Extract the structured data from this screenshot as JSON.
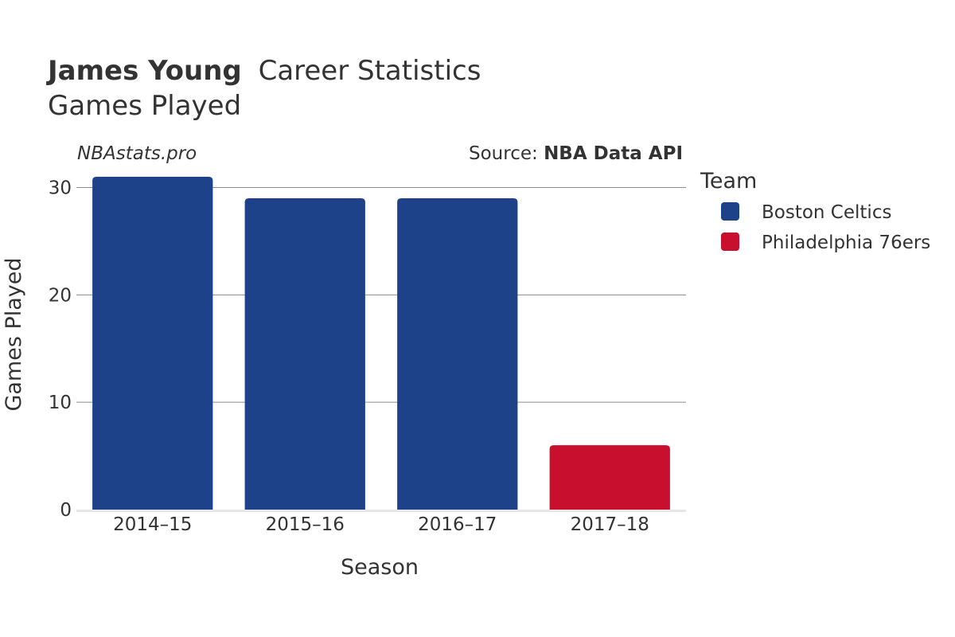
{
  "header": {
    "title_player": "James Young",
    "title_rest": "Career Statistics",
    "subtitle": "Games Played",
    "watermark": "NBAstats.pro",
    "source_prefix": "Source: ",
    "source_name": "NBA Data API"
  },
  "legend": {
    "title": "Team",
    "placement": "right",
    "entries": [
      {
        "name": "Boston Celtics",
        "color": "#1d428a"
      },
      {
        "name": "Philadelphia 76ers",
        "color": "#c8102e"
      }
    ]
  },
  "chart_data": {
    "type": "bar",
    "title": "James Young Career Statistics",
    "subtitle": "Games Played",
    "xlabel": "Season",
    "ylabel": "Games Played",
    "categories": [
      "2014–15",
      "2015–16",
      "2016–17",
      "2017–18"
    ],
    "values": [
      31,
      29,
      29,
      6
    ],
    "teams": [
      "Boston Celtics",
      "Boston Celtics",
      "Boston Celtics",
      "Philadelphia 76ers"
    ],
    "series": [
      {
        "name": "Boston Celtics",
        "color": "#1d428a",
        "values": [
          31,
          29,
          29,
          null
        ]
      },
      {
        "name": "Philadelphia 76ers",
        "color": "#c8102e",
        "values": [
          null,
          null,
          null,
          6
        ]
      }
    ],
    "ylim": [
      0,
      31
    ],
    "yticks": [
      0,
      10,
      20,
      30
    ],
    "grid": true
  }
}
